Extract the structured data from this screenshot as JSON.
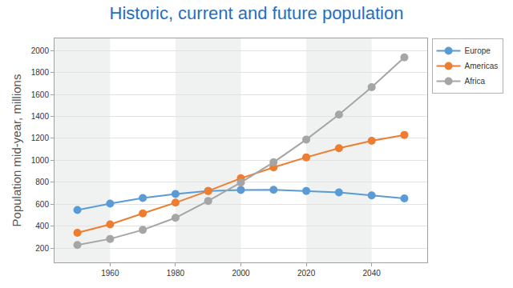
{
  "chart_data": {
    "type": "line",
    "title": "Historic, current and future population",
    "y_label": "Population mid-year, millions",
    "x": [
      1950,
      1960,
      1970,
      1980,
      1990,
      2000,
      2010,
      2020,
      2030,
      2040,
      2050
    ],
    "series": [
      {
        "name": "Europe",
        "color": "#5b9bd5",
        "values": [
          547,
          605,
          656,
          693,
          721,
          730,
          731,
          721,
          707,
          680,
          653
        ]
      },
      {
        "name": "Americas",
        "color": "#ed7d31",
        "values": [
          339,
          416,
          516,
          614,
          721,
          836,
          935,
          1027,
          1110,
          1178,
          1231
        ]
      },
      {
        "name": "Africa",
        "color": "#a5a5a5",
        "values": [
          228,
          284,
          366,
          476,
          630,
          797,
          982,
          1189,
          1416,
          1665,
          1937
        ]
      }
    ],
    "xlim": [
      1943,
      2057
    ],
    "xticks": [
      1960,
      1980,
      2000,
      2020,
      2040
    ],
    "ylim": [
      70,
      2110
    ],
    "yticks": [
      200,
      400,
      600,
      800,
      1000,
      1200,
      1400,
      1600,
      1800,
      2000
    ],
    "grid": true,
    "legend": "top right",
    "marker": "circle",
    "line_style": "solid"
  }
}
